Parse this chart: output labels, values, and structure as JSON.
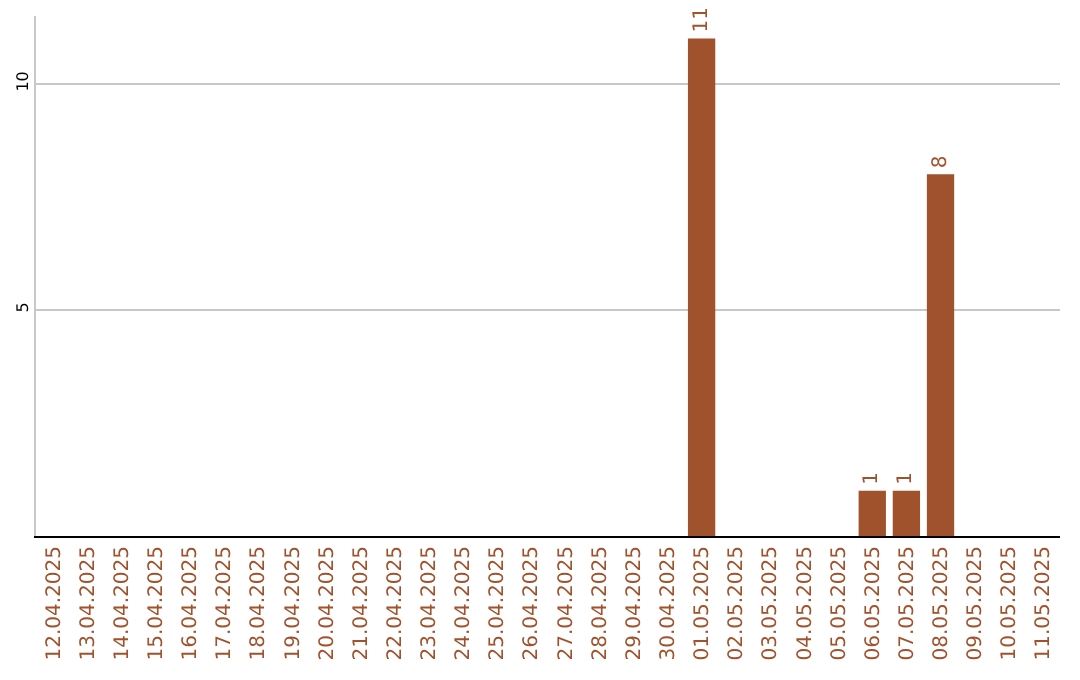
{
  "chart_data": {
    "type": "bar",
    "categories": [
      "12.04.2025",
      "13.04.2025",
      "14.04.2025",
      "15.04.2025",
      "16.04.2025",
      "17.04.2025",
      "18.04.2025",
      "19.04.2025",
      "20.04.2025",
      "21.04.2025",
      "22.04.2025",
      "23.04.2025",
      "24.04.2025",
      "25.04.2025",
      "26.04.2025",
      "27.04.2025",
      "28.04.2025",
      "29.04.2025",
      "30.04.2025",
      "01.05.2025",
      "02.05.2025",
      "03.05.2025",
      "04.05.2025",
      "05.05.2025",
      "06.05.2025",
      "07.05.2025",
      "08.05.2025",
      "09.05.2025",
      "10.05.2025",
      "11.05.2025"
    ],
    "values": [
      0,
      0,
      0,
      0,
      0,
      0,
      0,
      0,
      0,
      0,
      0,
      0,
      0,
      0,
      0,
      0,
      0,
      0,
      0,
      11,
      0,
      0,
      0,
      0,
      1,
      1,
      8,
      0,
      0,
      0
    ],
    "value_labels": [
      null,
      null,
      null,
      null,
      null,
      null,
      null,
      null,
      null,
      null,
      null,
      null,
      null,
      null,
      null,
      null,
      null,
      null,
      null,
      "11",
      null,
      null,
      null,
      null,
      "1",
      "1",
      "8",
      null,
      null,
      null
    ],
    "color": "#a0522d",
    "ylim": [
      0,
      11.5
    ],
    "yticks": [
      5,
      10
    ],
    "grid": "y"
  }
}
